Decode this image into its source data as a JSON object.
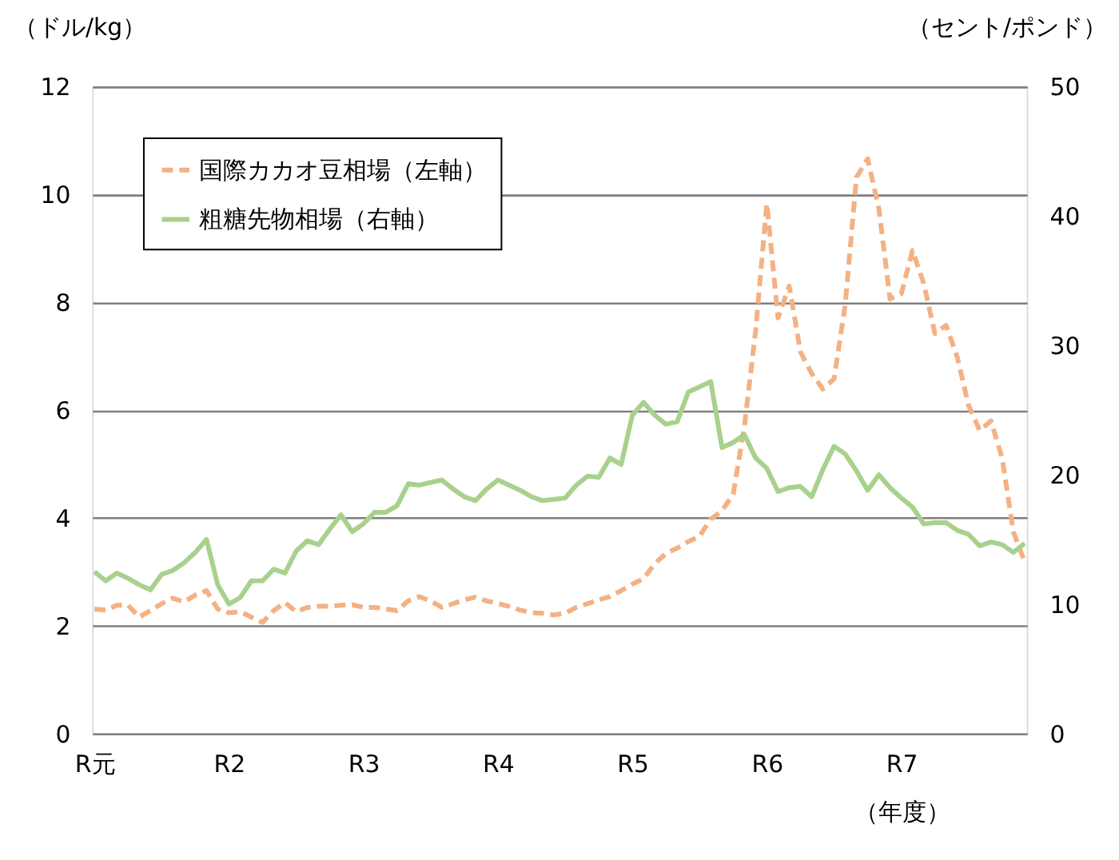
{
  "chart_data": {
    "type": "line",
    "xlabel": "（年度）",
    "ylabel": "（ドル/kg）",
    "y2label": "（セント/ポンド）",
    "categories": [
      "R元",
      null,
      null,
      null,
      null,
      null,
      null,
      null,
      null,
      null,
      null,
      null,
      "R2",
      null,
      null,
      null,
      null,
      null,
      null,
      null,
      null,
      null,
      null,
      null,
      "R3",
      null,
      null,
      null,
      null,
      null,
      null,
      null,
      null,
      null,
      null,
      null,
      "R4",
      null,
      null,
      null,
      null,
      null,
      null,
      null,
      null,
      null,
      null,
      null,
      "R5",
      null,
      null,
      null,
      null,
      null,
      null,
      null,
      null,
      null,
      null,
      null,
      "R6",
      null,
      null,
      null,
      null,
      null,
      null,
      null,
      null,
      null,
      null,
      null,
      "R7",
      null,
      null,
      null,
      null,
      null,
      null,
      null,
      null,
      null,
      null,
      null
    ],
    "ylim": [
      0,
      12
    ],
    "yticks": [
      0,
      2,
      4,
      6,
      8,
      10,
      12
    ],
    "y2lim": [
      0,
      50
    ],
    "y2ticks": [
      0,
      10,
      20,
      30,
      40,
      50
    ],
    "grid": "y",
    "legend": "top left",
    "series": [
      {
        "name": "国際カカオ豆相場（左軸）",
        "color": "#f4b183",
        "line_style": "dashed",
        "values": [
          2.31,
          2.29,
          2.38,
          2.38,
          2.16,
          2.28,
          2.41,
          2.51,
          2.44,
          2.57,
          2.65,
          2.31,
          2.24,
          2.26,
          2.16,
          2.06,
          2.28,
          2.43,
          2.26,
          2.34,
          2.36,
          2.36,
          2.38,
          2.39,
          2.34,
          2.34,
          2.31,
          2.28,
          2.46,
          2.54,
          2.46,
          2.34,
          2.41,
          2.48,
          2.53,
          2.46,
          2.41,
          2.36,
          2.29,
          2.24,
          2.23,
          2.2,
          2.23,
          2.34,
          2.41,
          2.48,
          2.54,
          2.65,
          2.77,
          2.87,
          3.15,
          3.34,
          3.44,
          3.56,
          3.66,
          3.98,
          4.13,
          4.44,
          5.7,
          7.47,
          9.83,
          7.71,
          8.3,
          7.08,
          6.68,
          6.39,
          6.58,
          7.96,
          10.32,
          10.66,
          9.73,
          8.06,
          8.16,
          8.96,
          8.35,
          7.42,
          7.57,
          6.98,
          6.09,
          5.62,
          5.8,
          5.11,
          3.74,
          3.19
        ]
      },
      {
        "name": "粗糖先物相場（右軸）",
        "color": "#a9d18e",
        "line_style": "solid",
        "axis": "y2",
        "values": [
          12.5,
          11.8,
          12.4,
          12.0,
          11.5,
          11.1,
          12.3,
          12.6,
          13.2,
          14.0,
          15.0,
          11.5,
          10.0,
          10.5,
          11.8,
          11.8,
          12.7,
          12.4,
          14.1,
          14.9,
          14.6,
          15.8,
          16.9,
          15.6,
          16.2,
          17.1,
          17.1,
          17.6,
          19.3,
          19.2,
          19.4,
          19.6,
          18.9,
          18.3,
          18.0,
          18.9,
          19.6,
          19.2,
          18.8,
          18.3,
          18.0,
          18.1,
          18.2,
          19.2,
          19.9,
          19.8,
          21.3,
          20.8,
          24.6,
          25.6,
          24.6,
          23.9,
          24.1,
          26.4,
          26.8,
          27.2,
          22.1,
          22.5,
          23.1,
          21.3,
          20.5,
          18.7,
          19.0,
          19.1,
          18.3,
          20.4,
          22.2,
          21.6,
          20.3,
          18.8,
          20.0,
          19.0,
          18.2,
          17.5,
          16.2,
          16.3,
          16.3,
          15.7,
          15.4,
          14.5,
          14.8,
          14.6,
          14.0,
          14.7
        ]
      }
    ]
  }
}
